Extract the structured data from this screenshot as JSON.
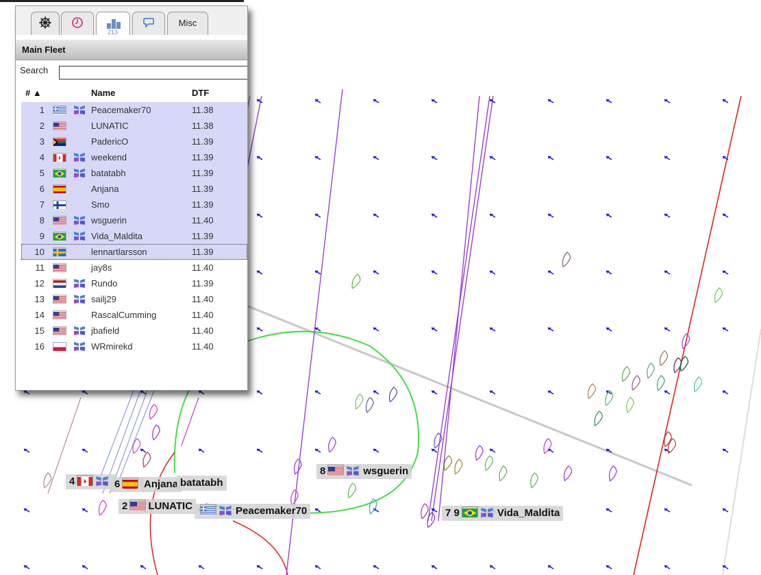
{
  "tabs": [
    {
      "icon": "wheel-icon",
      "label": ""
    },
    {
      "icon": "clock-icon",
      "label": ""
    },
    {
      "icon": "ranking-icon",
      "label": "213"
    },
    {
      "icon": "chat-icon",
      "label": ""
    },
    {
      "icon": "",
      "label": "Misc"
    }
  ],
  "panel": {
    "title": "Main Fleet",
    "search_label": "Search",
    "search_value": ""
  },
  "columns": {
    "rank": "# ▲",
    "name": "Name",
    "dtf": "DTF"
  },
  "rows": [
    {
      "rank": "1",
      "flag": "greece",
      "boat": true,
      "name": "Peacemaker70",
      "dtf": "11.38",
      "selected": true
    },
    {
      "rank": "2",
      "flag": "usa",
      "boat": false,
      "name": "LUNATIC",
      "dtf": "11.38",
      "selected": true
    },
    {
      "rank": "3",
      "flag": "south-africa",
      "boat": false,
      "name": "PadericO",
      "dtf": "11.39",
      "selected": true
    },
    {
      "rank": "4",
      "flag": "canada",
      "boat": true,
      "name": "weekend",
      "dtf": "11.39",
      "selected": true
    },
    {
      "rank": "5",
      "flag": "brazil",
      "boat": true,
      "name": "batatabh",
      "dtf": "11.39",
      "selected": true
    },
    {
      "rank": "6",
      "flag": "spain",
      "boat": false,
      "name": "Anjana",
      "dtf": "11.39",
      "selected": true
    },
    {
      "rank": "7",
      "flag": "finland",
      "boat": false,
      "name": "Smo",
      "dtf": "11.39",
      "selected": true
    },
    {
      "rank": "8",
      "flag": "usa",
      "boat": true,
      "name": "wsguerin",
      "dtf": "11.40",
      "selected": true
    },
    {
      "rank": "9",
      "flag": "brazil",
      "boat": true,
      "name": "Vida_Maldita",
      "dtf": "11.39",
      "selected": true
    },
    {
      "rank": "10",
      "flag": "sweden",
      "boat": false,
      "name": "lennartlarsson",
      "dtf": "11.39",
      "selected": true,
      "focus": true
    },
    {
      "rank": "11",
      "flag": "usa",
      "boat": false,
      "name": "jay8s",
      "dtf": "11.40",
      "selected": false
    },
    {
      "rank": "12",
      "flag": "netherlands",
      "boat": true,
      "name": "Rundo",
      "dtf": "11.39",
      "selected": false
    },
    {
      "rank": "13",
      "flag": "usa",
      "boat": true,
      "name": "sailj29",
      "dtf": "11.40",
      "selected": false
    },
    {
      "rank": "14",
      "flag": "usa",
      "boat": false,
      "name": "RascalCumming",
      "dtf": "11.40",
      "selected": false
    },
    {
      "rank": "15",
      "flag": "usa",
      "boat": true,
      "name": "jbafield",
      "dtf": "11.40",
      "selected": false
    },
    {
      "rank": "16",
      "flag": "poland",
      "boat": true,
      "name": "WRmirekd",
      "dtf": "11.40",
      "selected": false
    }
  ],
  "map_labels": [
    {
      "text": "4",
      "flag": "canada",
      "boat": true
    },
    {
      "text": "6",
      "flag": "spain",
      "boat": false
    },
    {
      "text": "Anjana",
      "flag": "",
      "boat": false
    },
    {
      "text": "batatabh",
      "flag": "",
      "boat": false
    },
    {
      "text": "8",
      "flag": "usa",
      "boat": true,
      "tail": "wsguerin"
    },
    {
      "text": "2",
      "flag": "usa",
      "boat": false,
      "tail": "LUNATIC"
    },
    {
      "text": "",
      "flag": "greece",
      "boat": true,
      "tail": "Peacemaker70"
    },
    {
      "text": "7 9",
      "flag": "brazil",
      "boat": true,
      "tail": "Vida_Maldita"
    }
  ],
  "colors": {
    "selection": "#d7d7f7",
    "wind_arrow": "#1a1ad0",
    "track_purple": "#9b3fd6",
    "track_red": "#e02020",
    "circle_green": "#44dd44",
    "layline_gray": "#c8c8c8"
  }
}
